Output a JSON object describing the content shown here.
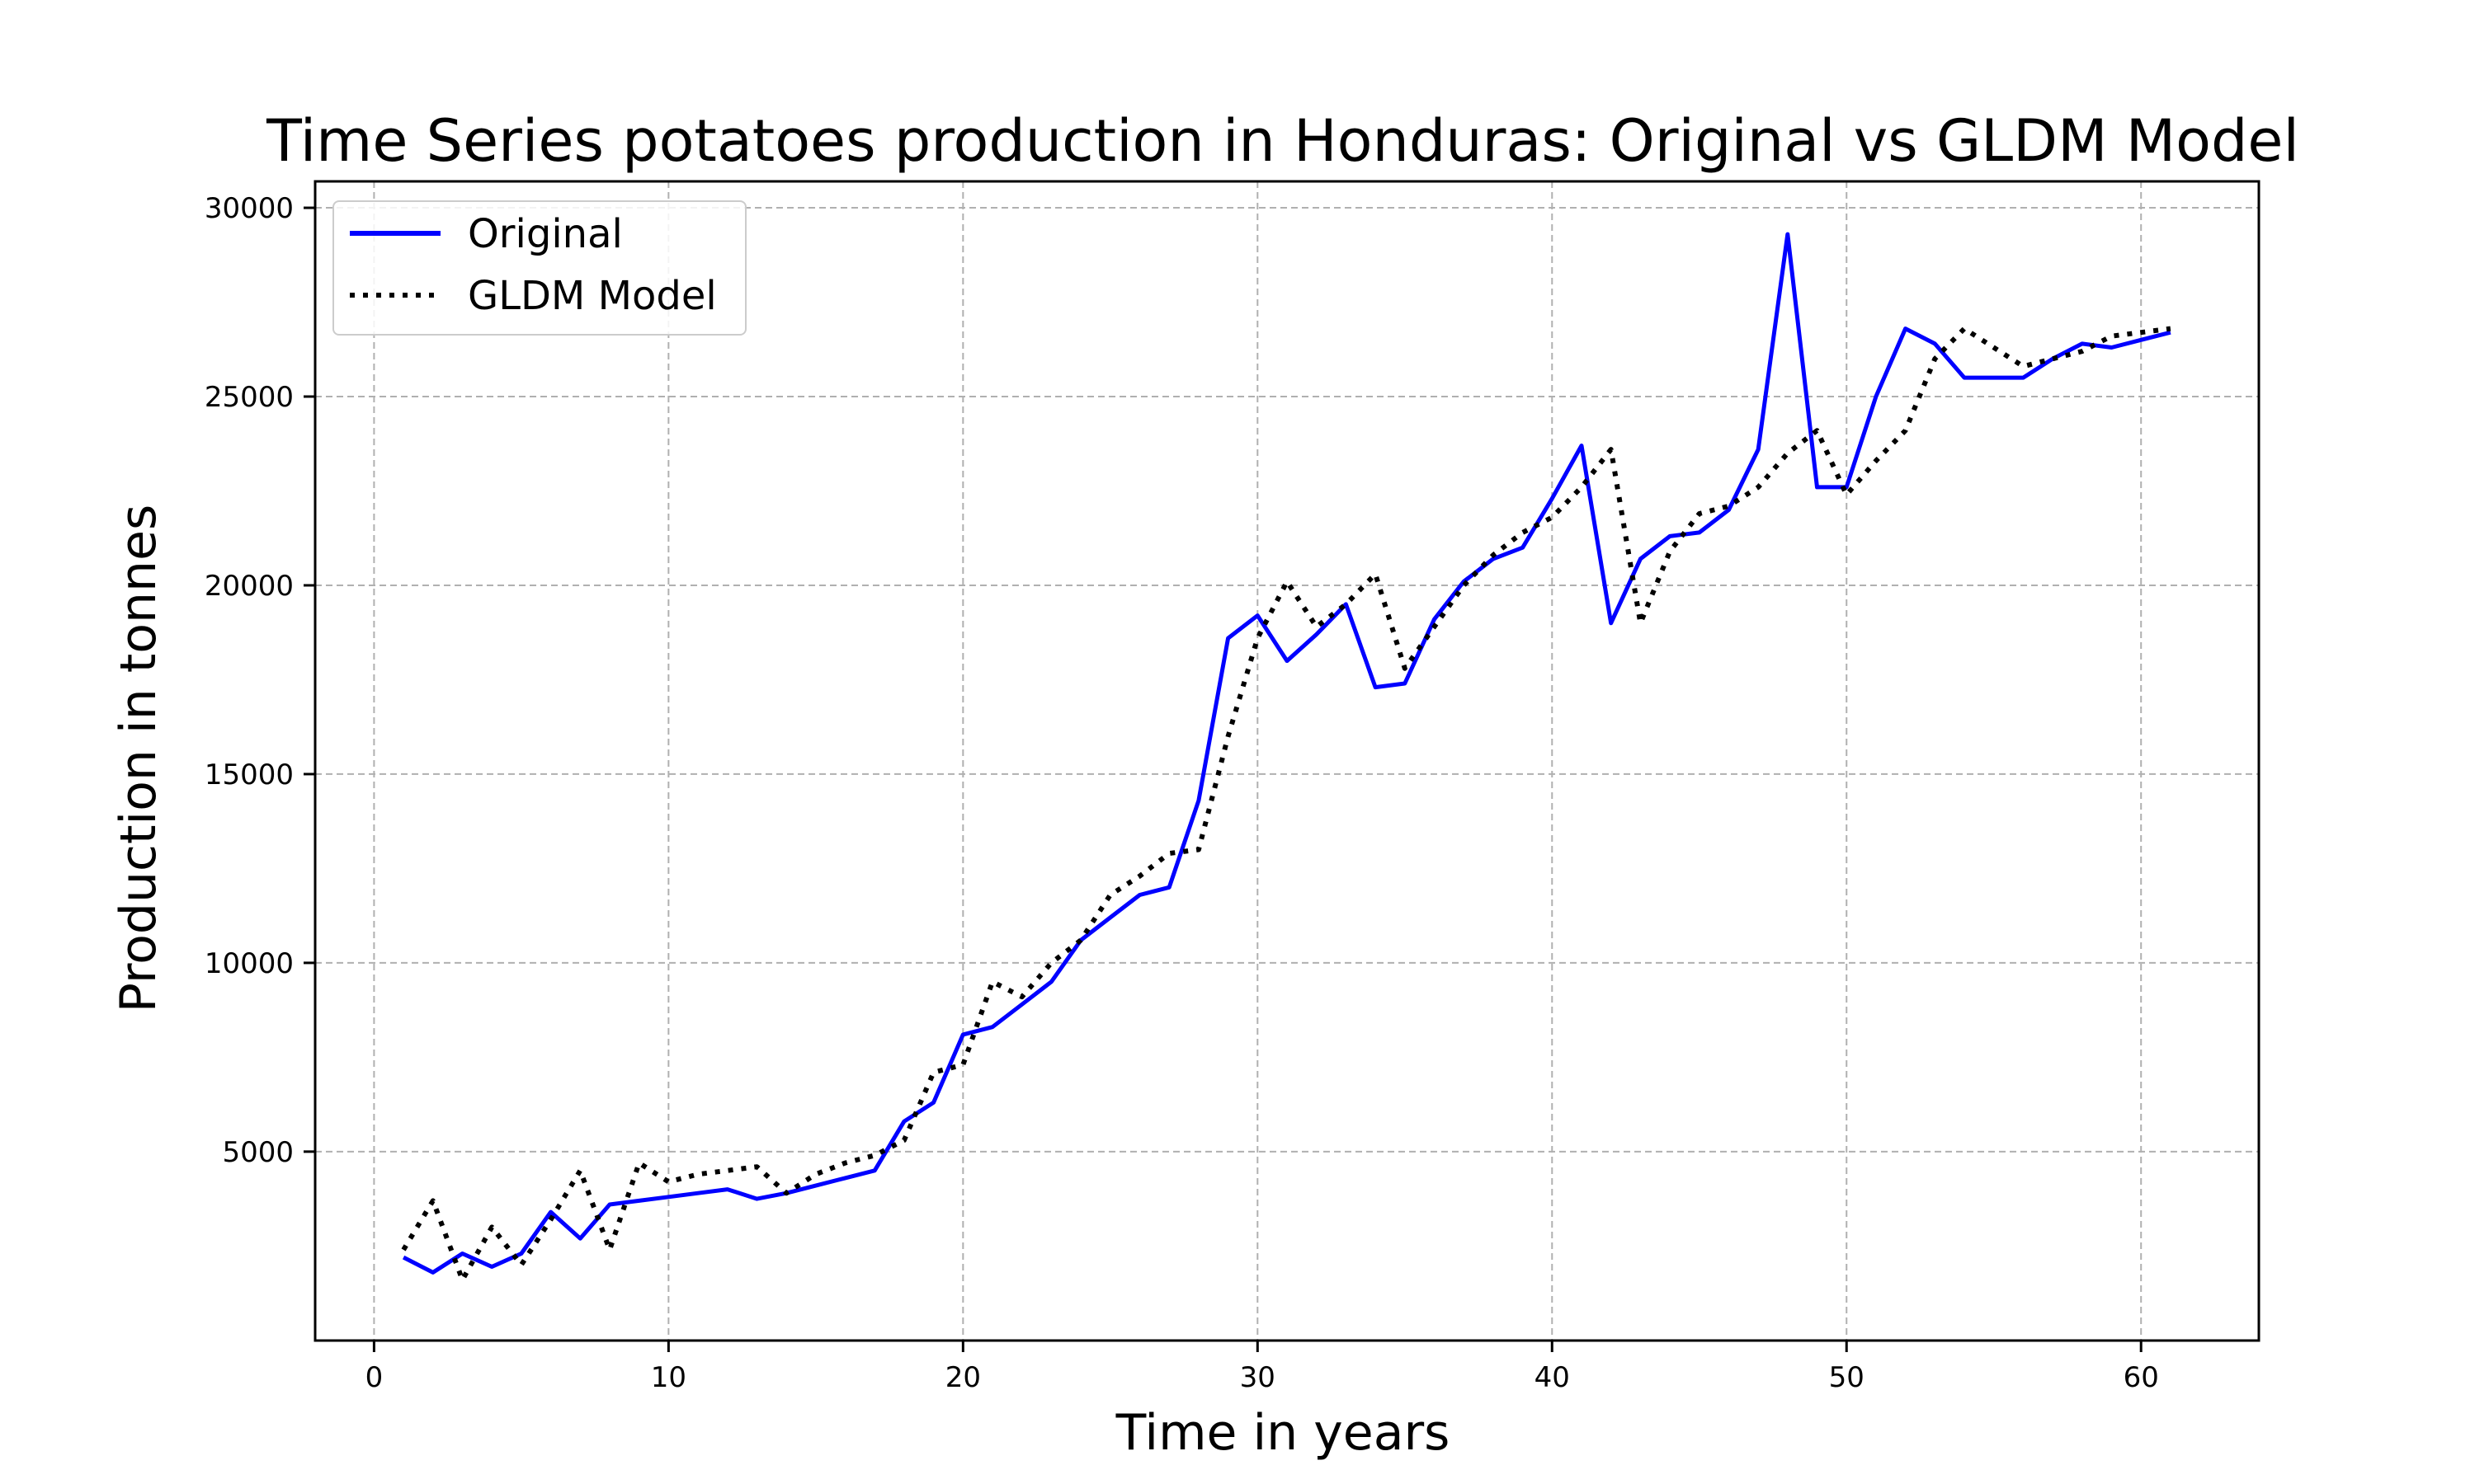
{
  "chart_data": {
    "type": "line",
    "title": "Time Series potatoes production in Honduras: Original vs GLDM Model",
    "xlabel": "Time in years",
    "ylabel": "Production in tonnes",
    "xlim": [
      -2,
      64
    ],
    "ylim": [
      -4,
      30700
    ],
    "x_ticks": [
      0,
      10,
      20,
      30,
      40,
      50,
      60
    ],
    "y_ticks": [
      5000,
      10000,
      15000,
      20000,
      25000,
      30000
    ],
    "grid": true,
    "legend_position": "top-left",
    "x": [
      1,
      2,
      3,
      4,
      5,
      6,
      7,
      8,
      9,
      10,
      11,
      12,
      13,
      14,
      15,
      16,
      17,
      18,
      19,
      20,
      21,
      22,
      23,
      24,
      25,
      26,
      27,
      28,
      29,
      30,
      31,
      32,
      33,
      34,
      35,
      36,
      37,
      38,
      39,
      40,
      41,
      42,
      43,
      44,
      45,
      46,
      47,
      48,
      49,
      50,
      51,
      52,
      53,
      54,
      55,
      56,
      57,
      58,
      59,
      60,
      61
    ],
    "series": [
      {
        "name": "Original",
        "color": "#0000ff",
        "style": "solid",
        "values": [
          2200,
          1800,
          2300,
          1950,
          2300,
          3400,
          2700,
          3600,
          3700,
          3800,
          3900,
          4000,
          3750,
          3900,
          4100,
          4300,
          4500,
          5800,
          6300,
          8100,
          8300,
          8900,
          9500,
          10600,
          11200,
          11800,
          12000,
          14300,
          18600,
          19200,
          18000,
          18700,
          19500,
          17300,
          17400,
          19100,
          20100,
          20700,
          21000,
          22300,
          23700,
          19000,
          20700,
          21300,
          21400,
          22000,
          23600,
          29300,
          22600,
          22600,
          25000,
          26800,
          26400,
          25500,
          25500,
          25500,
          26000,
          26400,
          26300,
          26500,
          26700
        ]
      },
      {
        "name": "GLDM Model",
        "color": "#000000",
        "style": "dotted",
        "values": [
          2400,
          3700,
          1600,
          3000,
          2000,
          3200,
          4500,
          2400,
          4700,
          4200,
          4400,
          4500,
          4600,
          3900,
          4400,
          4700,
          4900,
          5300,
          7100,
          7300,
          9500,
          9100,
          10000,
          10600,
          11800,
          12300,
          12900,
          13000,
          16000,
          18600,
          20100,
          18900,
          19500,
          20300,
          17800,
          18900,
          20000,
          20800,
          21400,
          21800,
          22600,
          23600,
          19000,
          20900,
          21900,
          22100,
          22600,
          23500,
          24100,
          22400,
          23300,
          24100,
          26000,
          26800,
          26300,
          25800,
          26000,
          26200,
          26600,
          26700,
          26800
        ]
      }
    ]
  }
}
